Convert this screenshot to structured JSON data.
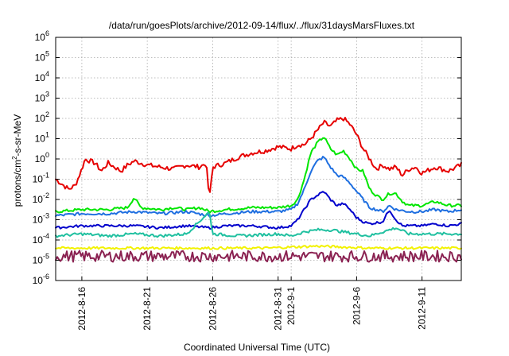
{
  "chart_data": {
    "type": "line",
    "title": "/data/run/goesPlots/archive/2012-09-14/flux/../flux/31daysMarsFluxes.txt",
    "xlabel": "Coordinated Universal Time (UTC)",
    "ylabel": {
      "base": "protons/cm",
      "sup": "2",
      "rest": "-s-sr-MeV"
    },
    "yscale": "log",
    "ylim_exp": [
      -6,
      6
    ],
    "ytick_exponents": [
      -6,
      -5,
      -4,
      -3,
      -2,
      -1,
      0,
      1,
      2,
      3,
      4,
      5,
      6
    ],
    "ytick_base": "10",
    "xlim": [
      "2012-08-14",
      "2012-09-14"
    ],
    "xticks": [
      {
        "date": "2012-08-16",
        "label": "2012-8-16"
      },
      {
        "date": "2012-08-21",
        "label": "2012-8-21"
      },
      {
        "date": "2012-08-26",
        "label": "2012-8-26"
      },
      {
        "date": "2012-08-31",
        "label": "2012-8-31"
      },
      {
        "date": "2012-09-01",
        "label": "2012-9-1"
      },
      {
        "date": "2012-09-06",
        "label": "2012-9-6"
      },
      {
        "date": "2012-09-11",
        "label": "2012-9-11"
      }
    ],
    "grid": true,
    "series": [
      {
        "color": "#e60000",
        "points": [
          [
            "2012-08-14T00:00",
            -1.0
          ],
          [
            "2012-08-15T00:00",
            -1.5
          ],
          [
            "2012-08-15T12:00",
            -1.3
          ],
          [
            "2012-08-16T00:00",
            -0.5
          ],
          [
            "2012-08-16T06:00",
            0.0
          ],
          [
            "2012-08-17T00:00",
            -0.2
          ],
          [
            "2012-08-17T12:00",
            -0.6
          ],
          [
            "2012-08-18T00:00",
            -0.2
          ],
          [
            "2012-08-19T00:00",
            -0.6
          ],
          [
            "2012-08-19T12:00",
            -0.3
          ],
          [
            "2012-08-20T00:00",
            -0.1
          ],
          [
            "2012-08-21T00:00",
            -0.3
          ],
          [
            "2012-08-22T00:00",
            -0.4
          ],
          [
            "2012-08-23T00:00",
            -0.5
          ],
          [
            "2012-08-24T00:00",
            -0.3
          ],
          [
            "2012-08-25T00:00",
            -0.4
          ],
          [
            "2012-08-25T12:00",
            -0.2
          ],
          [
            "2012-08-25T18:00",
            -2.0
          ],
          [
            "2012-08-26T00:00",
            -0.4
          ],
          [
            "2012-08-27T00:00",
            -0.2
          ],
          [
            "2012-08-28T00:00",
            0.1
          ],
          [
            "2012-08-29T00:00",
            0.3
          ],
          [
            "2012-08-30T00:00",
            0.4
          ],
          [
            "2012-08-31T00:00",
            0.6
          ],
          [
            "2012-09-01T00:00",
            0.5
          ],
          [
            "2012-09-01T12:00",
            0.7
          ],
          [
            "2012-09-02T00:00",
            0.7
          ],
          [
            "2012-09-02T12:00",
            1.0
          ],
          [
            "2012-09-03T00:00",
            1.4
          ],
          [
            "2012-09-03T12:00",
            1.8
          ],
          [
            "2012-09-04T00:00",
            1.6
          ],
          [
            "2012-09-04T12:00",
            1.9
          ],
          [
            "2012-09-05T00:00",
            2.0
          ],
          [
            "2012-09-05T12:00",
            1.7
          ],
          [
            "2012-09-06T00:00",
            1.2
          ],
          [
            "2012-09-06T12:00",
            0.5
          ],
          [
            "2012-09-07T00:00",
            0.0
          ],
          [
            "2012-09-07T12:00",
            -0.5
          ],
          [
            "2012-09-08T00:00",
            -0.3
          ],
          [
            "2012-09-08T12:00",
            -0.5
          ],
          [
            "2012-09-09T00:00",
            -0.4
          ],
          [
            "2012-09-09T12:00",
            -0.8
          ],
          [
            "2012-09-10T00:00",
            -0.5
          ],
          [
            "2012-09-10T12:00",
            -0.4
          ],
          [
            "2012-09-11T00:00",
            -0.7
          ],
          [
            "2012-09-12T00:00",
            -0.4
          ],
          [
            "2012-09-13T00:00",
            -0.6
          ],
          [
            "2012-09-14T00:00",
            -0.3
          ]
        ]
      },
      {
        "color": "#00e600",
        "points": [
          [
            "2012-08-14T00:00",
            -2.6
          ],
          [
            "2012-08-16T00:00",
            -2.5
          ],
          [
            "2012-08-18T00:00",
            -2.5
          ],
          [
            "2012-08-19T12:00",
            -2.4
          ],
          [
            "2012-08-20T00:00",
            -1.9
          ],
          [
            "2012-08-20T12:00",
            -2.4
          ],
          [
            "2012-08-22T00:00",
            -2.5
          ],
          [
            "2012-08-23T00:00",
            -2.4
          ],
          [
            "2012-08-24T00:00",
            -2.5
          ],
          [
            "2012-08-25T00:00",
            -2.4
          ],
          [
            "2012-08-25T18:00",
            -2.6
          ],
          [
            "2012-08-27T00:00",
            -2.5
          ],
          [
            "2012-08-29T00:00",
            -2.4
          ],
          [
            "2012-08-31T00:00",
            -2.4
          ],
          [
            "2012-09-01T00:00",
            -2.3
          ],
          [
            "2012-09-01T12:00",
            -2.0
          ],
          [
            "2012-09-02T00:00",
            -1.0
          ],
          [
            "2012-09-02T12:00",
            0.3
          ],
          [
            "2012-09-03T00:00",
            0.8
          ],
          [
            "2012-09-03T12:00",
            1.1
          ],
          [
            "2012-09-04T00:00",
            0.5
          ],
          [
            "2012-09-04T12:00",
            0.2
          ],
          [
            "2012-09-05T00:00",
            0.4
          ],
          [
            "2012-09-05T12:00",
            0.0
          ],
          [
            "2012-09-06T00:00",
            -0.5
          ],
          [
            "2012-09-06T12:00",
            -0.6
          ],
          [
            "2012-09-07T00:00",
            -1.5
          ],
          [
            "2012-09-07T12:00",
            -1.8
          ],
          [
            "2012-09-08T00:00",
            -2.0
          ],
          [
            "2012-09-08T12:00",
            -1.7
          ],
          [
            "2012-09-09T00:00",
            -1.7
          ],
          [
            "2012-09-09T12:00",
            -2.1
          ],
          [
            "2012-09-10T00:00",
            -2.3
          ],
          [
            "2012-09-11T00:00",
            -2.3
          ],
          [
            "2012-09-12T00:00",
            -2.1
          ],
          [
            "2012-09-13T00:00",
            -2.3
          ],
          [
            "2012-09-14T00:00",
            -2.3
          ]
        ]
      },
      {
        "color": "#1f6fe0",
        "points": [
          [
            "2012-08-14T00:00",
            -2.8
          ],
          [
            "2012-08-16T00:00",
            -2.7
          ],
          [
            "2012-08-18T00:00",
            -2.7
          ],
          [
            "2012-08-20T00:00",
            -2.6
          ],
          [
            "2012-08-22T00:00",
            -2.7
          ],
          [
            "2012-08-24T00:00",
            -2.6
          ],
          [
            "2012-08-25T18:00",
            -2.8
          ],
          [
            "2012-08-27T00:00",
            -2.7
          ],
          [
            "2012-08-29T00:00",
            -2.6
          ],
          [
            "2012-08-31T00:00",
            -2.6
          ],
          [
            "2012-09-01T00:00",
            -2.5
          ],
          [
            "2012-09-01T12:00",
            -2.2
          ],
          [
            "2012-09-02T00:00",
            -1.5
          ],
          [
            "2012-09-02T12:00",
            -0.6
          ],
          [
            "2012-09-03T00:00",
            -0.1
          ],
          [
            "2012-09-03T12:00",
            0.1
          ],
          [
            "2012-09-04T00:00",
            -0.4
          ],
          [
            "2012-09-04T12:00",
            -0.8
          ],
          [
            "2012-09-05T00:00",
            -0.9
          ],
          [
            "2012-09-05T12:00",
            -1.2
          ],
          [
            "2012-09-06T00:00",
            -1.6
          ],
          [
            "2012-09-06T12:00",
            -2.0
          ],
          [
            "2012-09-07T00:00",
            -2.4
          ],
          [
            "2012-09-08T00:00",
            -2.6
          ],
          [
            "2012-09-08T12:00",
            -2.3
          ],
          [
            "2012-09-09T00:00",
            -2.5
          ],
          [
            "2012-09-10T00:00",
            -2.6
          ],
          [
            "2012-09-11T00:00",
            -2.6
          ],
          [
            "2012-09-12T00:00",
            -2.5
          ],
          [
            "2012-09-13T00:00",
            -2.6
          ],
          [
            "2012-09-14T00:00",
            -2.5
          ]
        ]
      },
      {
        "color": "#0000cc",
        "points": [
          [
            "2012-08-14T00:00",
            -3.4
          ],
          [
            "2012-08-16T00:00",
            -3.3
          ],
          [
            "2012-08-18T00:00",
            -3.3
          ],
          [
            "2012-08-20T00:00",
            -3.3
          ],
          [
            "2012-08-22T00:00",
            -3.4
          ],
          [
            "2012-08-24T00:00",
            -3.3
          ],
          [
            "2012-08-25T18:00",
            -3.4
          ],
          [
            "2012-08-27T00:00",
            -3.3
          ],
          [
            "2012-08-29T00:00",
            -3.3
          ],
          [
            "2012-08-31T00:00",
            -3.4
          ],
          [
            "2012-09-01T00:00",
            -3.3
          ],
          [
            "2012-09-01T12:00",
            -3.0
          ],
          [
            "2012-09-02T00:00",
            -2.5
          ],
          [
            "2012-09-02T12:00",
            -2.0
          ],
          [
            "2012-09-03T00:00",
            -1.8
          ],
          [
            "2012-09-03T12:00",
            -1.6
          ],
          [
            "2012-09-04T00:00",
            -2.0
          ],
          [
            "2012-09-04T12:00",
            -2.3
          ],
          [
            "2012-09-05T00:00",
            -2.2
          ],
          [
            "2012-09-05T12:00",
            -2.5
          ],
          [
            "2012-09-06T00:00",
            -2.9
          ],
          [
            "2012-09-06T12:00",
            -3.1
          ],
          [
            "2012-09-07T00:00",
            -3.2
          ],
          [
            "2012-09-08T00:00",
            -3.1
          ],
          [
            "2012-09-08T12:00",
            -2.5
          ],
          [
            "2012-09-09T00:00",
            -3.0
          ],
          [
            "2012-09-09T12:00",
            -3.3
          ],
          [
            "2012-09-11T00:00",
            -3.3
          ],
          [
            "2012-09-12T00:00",
            -3.2
          ],
          [
            "2012-09-13T00:00",
            -3.3
          ],
          [
            "2012-09-14T00:00",
            -3.2
          ]
        ]
      },
      {
        "color": "#20c0a0",
        "points": [
          [
            "2012-08-14T00:00",
            -3.8
          ],
          [
            "2012-08-16T00:00",
            -3.7
          ],
          [
            "2012-08-18T00:00",
            -3.8
          ],
          [
            "2012-08-20T00:00",
            -3.7
          ],
          [
            "2012-08-22T00:00",
            -3.8
          ],
          [
            "2012-08-24T00:00",
            -3.7
          ],
          [
            "2012-08-25T18:00",
            -2.6
          ],
          [
            "2012-08-26T00:00",
            -3.7
          ],
          [
            "2012-08-28T00:00",
            -3.8
          ],
          [
            "2012-08-31T00:00",
            -3.7
          ],
          [
            "2012-09-01T00:00",
            -3.8
          ],
          [
            "2012-09-02T00:00",
            -3.6
          ],
          [
            "2012-09-03T00:00",
            -3.5
          ],
          [
            "2012-09-04T00:00",
            -3.5
          ],
          [
            "2012-09-05T00:00",
            -3.6
          ],
          [
            "2012-09-06T00:00",
            -3.7
          ],
          [
            "2012-09-07T00:00",
            -3.8
          ],
          [
            "2012-09-08T00:00",
            -3.6
          ],
          [
            "2012-09-09T00:00",
            -3.4
          ],
          [
            "2012-09-10T00:00",
            -3.7
          ],
          [
            "2012-09-12T00:00",
            -3.7
          ],
          [
            "2012-09-14T00:00",
            -3.7
          ]
        ]
      },
      {
        "color": "#f2f200",
        "points": [
          [
            "2012-08-14T00:00",
            -4.4
          ],
          [
            "2012-08-18T00:00",
            -4.4
          ],
          [
            "2012-08-22T00:00",
            -4.4
          ],
          [
            "2012-08-26T00:00",
            -4.4
          ],
          [
            "2012-08-30T00:00",
            -4.4
          ],
          [
            "2012-09-03T00:00",
            -4.3
          ],
          [
            "2012-09-07T00:00",
            -4.4
          ],
          [
            "2012-09-10T00:00",
            -4.4
          ],
          [
            "2012-09-14T00:00",
            -4.4
          ]
        ]
      },
      {
        "color": "#8b2252",
        "points": [
          [
            "2012-08-14T00:00",
            -4.8
          ],
          [
            "2012-08-18T00:00",
            -4.8
          ],
          [
            "2012-08-22T00:00",
            -4.8
          ],
          [
            "2012-08-26T00:00",
            -4.8
          ],
          [
            "2012-08-30T00:00",
            -4.8
          ],
          [
            "2012-09-03T00:00",
            -4.8
          ],
          [
            "2012-09-07T00:00",
            -4.8
          ],
          [
            "2012-09-10T00:00",
            -4.8
          ],
          [
            "2012-09-14T00:00",
            -4.8
          ]
        ]
      }
    ]
  }
}
